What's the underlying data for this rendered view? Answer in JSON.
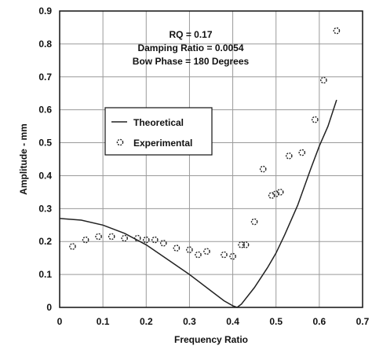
{
  "chart_data": {
    "type": "line",
    "xlabel": "Frequency Ratio",
    "ylabel": "Amplitude - mm",
    "xlim": [
      0,
      0.7
    ],
    "ylim": [
      0,
      0.9
    ],
    "xticks": [
      "0",
      "0.1",
      "0.2",
      "0.3",
      "0.4",
      "0.5",
      "0.6",
      "0.7"
    ],
    "yticks": [
      "0",
      "0.1",
      "0.2",
      "0.3",
      "0.4",
      "0.5",
      "0.6",
      "0.7",
      "0.8",
      "0.9"
    ],
    "grid": true,
    "legend_position": "center-left",
    "annotations": [
      "RQ = 0.17",
      "Damping Ratio = 0.0054",
      "Bow Phase = 180 Degrees"
    ],
    "series": [
      {
        "name": "Theoretical",
        "style": "line",
        "color": "#222222",
        "x": [
          0,
          0.05,
          0.1,
          0.15,
          0.2,
          0.25,
          0.3,
          0.35,
          0.38,
          0.4,
          0.41,
          0.42,
          0.45,
          0.48,
          0.5,
          0.52,
          0.55,
          0.58,
          0.6,
          0.62,
          0.64
        ],
        "y": [
          0.27,
          0.265,
          0.25,
          0.225,
          0.19,
          0.145,
          0.1,
          0.05,
          0.02,
          0.005,
          0,
          0.01,
          0.06,
          0.12,
          0.165,
          0.22,
          0.31,
          0.42,
          0.49,
          0.55,
          0.63
        ]
      },
      {
        "name": "Experimental",
        "style": "markers",
        "color": "#222222",
        "x": [
          0.03,
          0.06,
          0.09,
          0.12,
          0.15,
          0.18,
          0.2,
          0.22,
          0.24,
          0.27,
          0.3,
          0.32,
          0.34,
          0.38,
          0.4,
          0.42,
          0.43,
          0.45,
          0.47,
          0.49,
          0.5,
          0.51,
          0.53,
          0.56,
          0.59,
          0.61,
          0.64
        ],
        "y": [
          0.185,
          0.205,
          0.215,
          0.215,
          0.21,
          0.21,
          0.205,
          0.205,
          0.195,
          0.18,
          0.175,
          0.16,
          0.17,
          0.16,
          0.155,
          0.19,
          0.19,
          0.26,
          0.42,
          0.34,
          0.345,
          0.35,
          0.46,
          0.47,
          0.57,
          0.69,
          0.84
        ]
      }
    ]
  }
}
